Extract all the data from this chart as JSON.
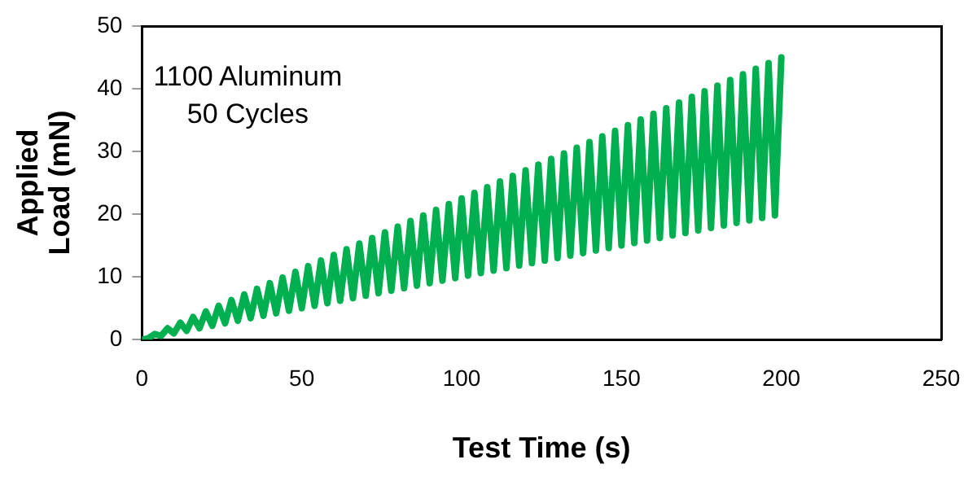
{
  "chart_data": {
    "type": "line",
    "xlabel": "Test Time (s)",
    "ylabel": "Applied Load (mN)",
    "annotations": [
      "1100 Aluminum",
      "50 Cycles"
    ],
    "xlim": [
      0,
      250
    ],
    "xticks": [
      0,
      50,
      100,
      150,
      200,
      250
    ],
    "ylim": [
      0,
      50
    ],
    "yticks": [
      0,
      10,
      20,
      30,
      40,
      50
    ],
    "grid": false,
    "legend": false,
    "marker": "none",
    "line_style": "solid",
    "series": [
      {
        "color": "#00b050",
        "x": [
          0,
          2,
          4,
          6,
          8,
          10,
          12,
          14,
          16,
          18,
          20,
          22,
          24,
          26,
          28,
          30,
          32,
          34,
          36,
          38,
          40,
          42,
          44,
          46,
          48,
          50,
          52,
          54,
          56,
          58,
          60,
          62,
          64,
          66,
          68,
          70,
          72,
          74,
          76,
          78,
          80,
          82,
          84,
          86,
          88,
          90,
          92,
          94,
          96,
          98,
          100,
          102,
          104,
          106,
          108,
          110,
          112,
          114,
          116,
          118,
          120,
          122,
          124,
          126,
          128,
          130,
          132,
          134,
          136,
          138,
          140,
          142,
          144,
          146,
          148,
          150,
          152,
          154,
          156,
          158,
          160,
          162,
          164,
          166,
          168,
          170,
          172,
          174,
          176,
          178,
          180,
          182,
          184,
          186,
          188,
          190,
          192,
          194,
          196,
          198,
          200
        ],
        "values": [
          0,
          0.2,
          0.9,
          0.6,
          1.8,
          1.0,
          2.7,
          1.4,
          3.6,
          1.8,
          4.5,
          2.2,
          5.4,
          2.6,
          6.3,
          3.0,
          7.2,
          3.4,
          8.1,
          3.8,
          9.0,
          4.2,
          9.9,
          4.6,
          10.8,
          5.0,
          11.7,
          5.4,
          12.6,
          5.8,
          13.5,
          6.2,
          14.4,
          6.6,
          15.3,
          7.0,
          16.2,
          7.4,
          17.1,
          7.8,
          18.0,
          8.2,
          18.9,
          8.6,
          19.8,
          9.0,
          20.7,
          9.4,
          21.6,
          9.8,
          22.5,
          10.2,
          23.4,
          10.6,
          24.3,
          11.0,
          25.2,
          11.4,
          26.1,
          11.8,
          27.0,
          12.2,
          27.9,
          12.6,
          28.8,
          13.0,
          29.7,
          13.4,
          30.6,
          13.8,
          31.5,
          14.2,
          32.4,
          14.6,
          33.3,
          15.0,
          34.2,
          15.4,
          35.1,
          15.8,
          36.0,
          16.2,
          36.9,
          16.6,
          37.8,
          17.0,
          38.7,
          17.4,
          39.6,
          17.8,
          40.5,
          18.2,
          41.4,
          18.6,
          42.3,
          19.0,
          43.2,
          19.4,
          44.1,
          19.8,
          45.0
        ]
      }
    ]
  }
}
